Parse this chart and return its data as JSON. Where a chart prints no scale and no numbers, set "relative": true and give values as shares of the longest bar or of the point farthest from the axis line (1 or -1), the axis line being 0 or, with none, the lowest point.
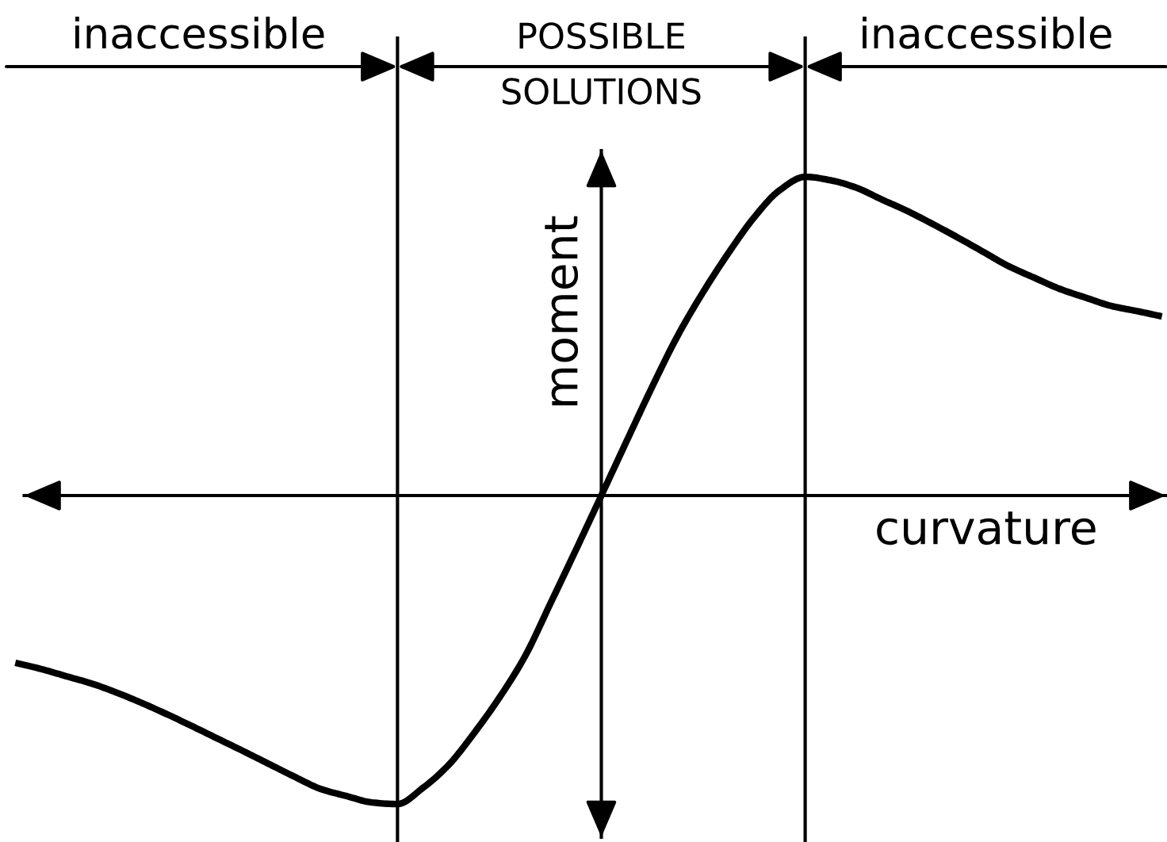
{
  "chart_data": {
    "type": "line",
    "relative": true,
    "grid": "x",
    "categories": [
      null,
      null,
      null,
      null,
      null,
      null,
      null,
      null,
      null,
      null,
      null,
      null,
      null,
      null,
      null,
      null,
      null,
      null,
      null,
      null,
      null,
      null,
      null,
      null,
      null,
      null,
      null,
      null,
      null,
      null,
      null,
      null,
      null,
      null,
      null,
      null,
      null,
      null,
      null,
      null,
      null,
      null,
      null,
      null,
      null,
      null
    ],
    "series": [
      {
        "color": "#000000",
        "values": [
          -0.525,
          -0.544,
          -0.567,
          -0.59,
          -0.619,
          -0.652,
          -0.688,
          -0.726,
          -0.765,
          -0.804,
          -0.844,
          -0.884,
          -0.921,
          -0.943,
          -0.963,
          -0.968,
          -0.917,
          -0.846,
          -0.746,
          -0.634,
          -0.505,
          -0.339,
          -0.171,
          0,
          0.172,
          0.342,
          0.502,
          0.639,
          0.762,
          0.873,
          0.958,
          1.0,
          0.989,
          0.966,
          0.929,
          0.893,
          0.852,
          0.809,
          0.764,
          0.719,
          0.683,
          0.648,
          0.621,
          0.595,
          0.579,
          0.562
        ]
      }
    ],
    "xlabel": "curvature",
    "ylabel": "moment",
    "annotations": [
      "inaccessible",
      "POSSIBLE\nSOLUTIONS",
      "inaccessible"
    ]
  }
}
